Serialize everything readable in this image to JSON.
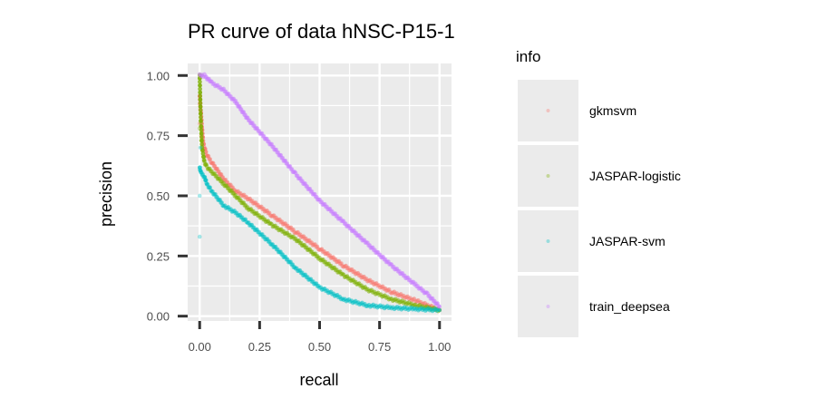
{
  "chart_data": {
    "type": "line",
    "title": "PR curve of data hNSC-P15-1",
    "xlabel": "recall",
    "ylabel": "precision",
    "xlim": [
      -0.05,
      1.05
    ],
    "ylim": [
      -0.02,
      1.05
    ],
    "x_ticks": [
      0.0,
      0.25,
      0.5,
      0.75,
      1.0
    ],
    "x_tick_labels": [
      "0.00",
      "0.25",
      "0.50",
      "0.75",
      "1.00"
    ],
    "y_ticks": [
      0.0,
      0.25,
      0.5,
      0.75,
      1.0
    ],
    "y_tick_labels": [
      "0.00",
      "0.25",
      "0.50",
      "0.75",
      "1.00"
    ],
    "grid": true,
    "legend": {
      "title": "info",
      "position": "right"
    },
    "series": [
      {
        "name": "gkmsvm",
        "color": "#F8766D",
        "points": [
          [
            0.0,
            0.92
          ],
          [
            0.005,
            0.85
          ],
          [
            0.01,
            0.78
          ],
          [
            0.015,
            0.72
          ],
          [
            0.02,
            0.7
          ],
          [
            0.03,
            0.67
          ],
          [
            0.05,
            0.64
          ],
          [
            0.1,
            0.57
          ],
          [
            0.15,
            0.52
          ],
          [
            0.2,
            0.49
          ],
          [
            0.3,
            0.42
          ],
          [
            0.4,
            0.35
          ],
          [
            0.5,
            0.28
          ],
          [
            0.6,
            0.21
          ],
          [
            0.7,
            0.15
          ],
          [
            0.8,
            0.1
          ],
          [
            0.9,
            0.065
          ],
          [
            1.0,
            0.025
          ]
        ],
        "scatter": [
          [
            0.0,
            0.88
          ],
          [
            0.0,
            0.8
          ],
          [
            0.002,
            0.86
          ],
          [
            0.006,
            0.75
          ]
        ]
      },
      {
        "name": "JASPAR-logistic",
        "color": "#7CAE00",
        "points": [
          [
            0.0,
            1.0
          ],
          [
            0.005,
            0.8
          ],
          [
            0.01,
            0.7
          ],
          [
            0.02,
            0.64
          ],
          [
            0.03,
            0.62
          ],
          [
            0.05,
            0.6
          ],
          [
            0.1,
            0.55
          ],
          [
            0.15,
            0.5
          ],
          [
            0.2,
            0.45
          ],
          [
            0.3,
            0.38
          ],
          [
            0.4,
            0.32
          ],
          [
            0.5,
            0.24
          ],
          [
            0.6,
            0.17
          ],
          [
            0.7,
            0.11
          ],
          [
            0.8,
            0.07
          ],
          [
            0.9,
            0.045
          ],
          [
            1.0,
            0.025
          ]
        ],
        "scatter": [
          [
            0.0,
            1.0
          ],
          [
            0.008,
            1.0
          ],
          [
            0.0,
            0.78
          ],
          [
            0.006,
            0.73
          ]
        ]
      },
      {
        "name": "JASPAR-svm",
        "color": "#00BFC4",
        "points": [
          [
            0.0,
            0.62
          ],
          [
            0.005,
            0.6
          ],
          [
            0.01,
            0.59
          ],
          [
            0.02,
            0.58
          ],
          [
            0.03,
            0.55
          ],
          [
            0.05,
            0.52
          ],
          [
            0.1,
            0.46
          ],
          [
            0.15,
            0.43
          ],
          [
            0.2,
            0.39
          ],
          [
            0.3,
            0.3
          ],
          [
            0.4,
            0.2
          ],
          [
            0.5,
            0.12
          ],
          [
            0.6,
            0.07
          ],
          [
            0.7,
            0.045
          ],
          [
            0.8,
            0.035
          ],
          [
            0.9,
            0.03
          ],
          [
            1.0,
            0.025
          ]
        ],
        "scatter": [
          [
            0.0,
            0.33
          ],
          [
            0.0,
            0.5
          ],
          [
            0.0,
            0.61
          ],
          [
            0.003,
            0.7
          ]
        ]
      },
      {
        "name": "train_deepsea",
        "color": "#C77CFF",
        "points": [
          [
            0.0,
            1.0
          ],
          [
            0.02,
            1.0
          ],
          [
            0.05,
            0.97
          ],
          [
            0.1,
            0.94
          ],
          [
            0.15,
            0.89
          ],
          [
            0.2,
            0.82
          ],
          [
            0.3,
            0.71
          ],
          [
            0.4,
            0.59
          ],
          [
            0.5,
            0.48
          ],
          [
            0.6,
            0.39
          ],
          [
            0.7,
            0.3
          ],
          [
            0.8,
            0.21
          ],
          [
            0.9,
            0.13
          ],
          [
            0.95,
            0.09
          ],
          [
            1.0,
            0.04
          ]
        ],
        "scatter": []
      }
    ]
  }
}
